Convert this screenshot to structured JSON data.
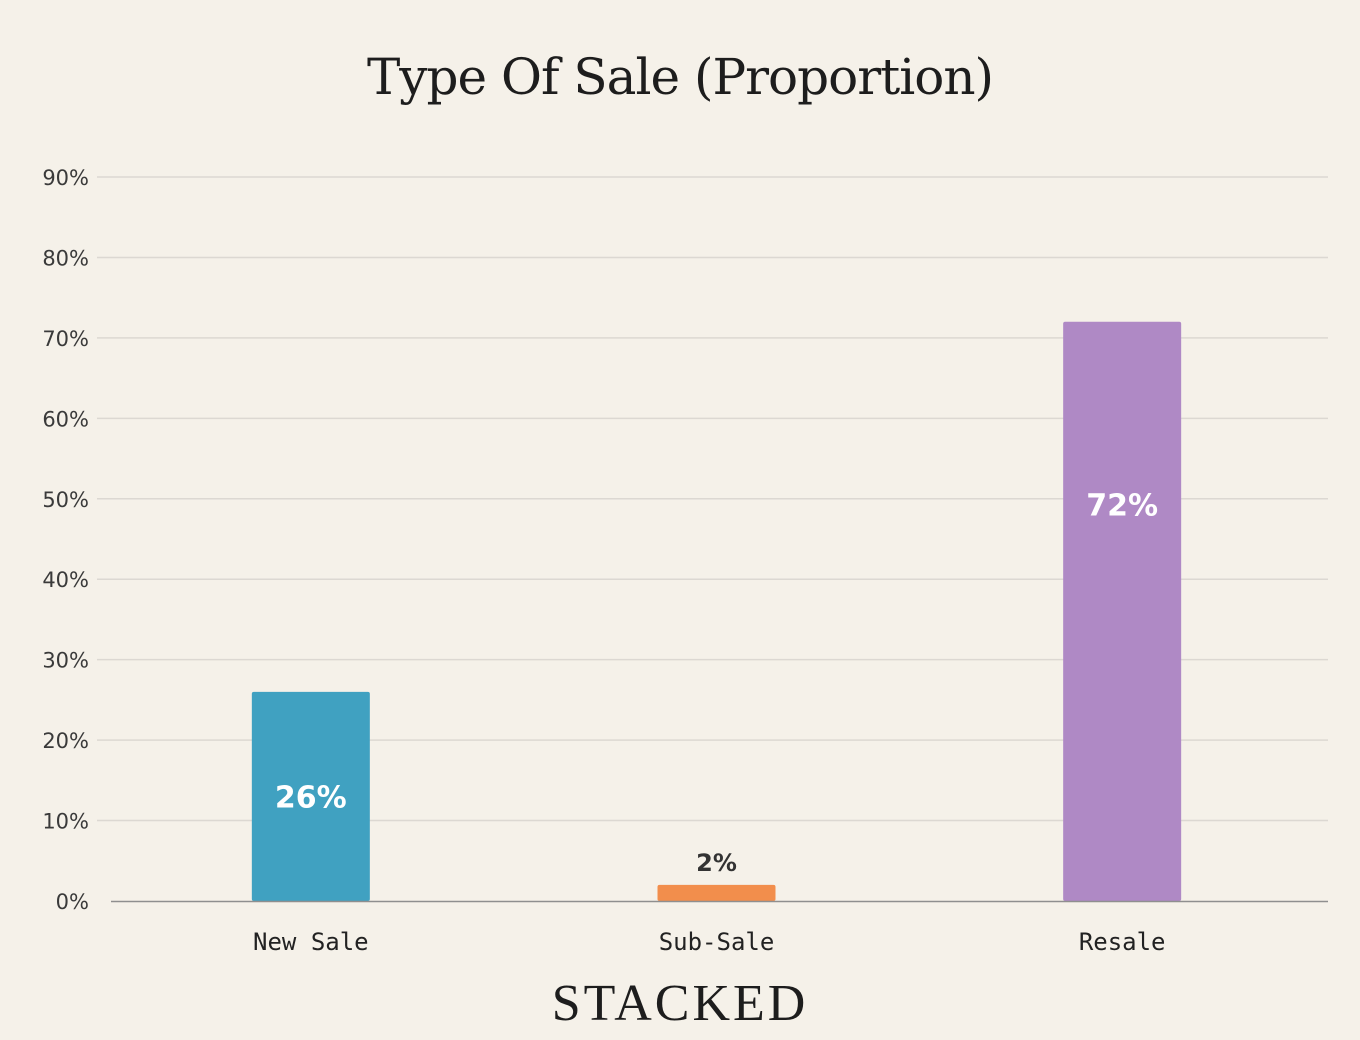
{
  "chart_data": {
    "type": "bar",
    "title": "Type Of Sale (Proportion)",
    "xlabel": "",
    "ylabel": "",
    "categories": [
      "New Sale",
      "Sub-Sale",
      "Resale"
    ],
    "values": [
      26,
      2,
      72
    ],
    "data_labels": [
      "26%",
      "2%",
      "72%"
    ],
    "colors": [
      "#40a1c1",
      "#f28e4c",
      "#af89c5"
    ],
    "ylim": [
      0,
      90
    ],
    "yticks": [
      0,
      10,
      20,
      30,
      40,
      50,
      60,
      70,
      80,
      90
    ],
    "ytick_labels": [
      "0%",
      "10%",
      "20%",
      "30%",
      "40%",
      "50%",
      "60%",
      "70%",
      "80%",
      "90%"
    ],
    "grid": true,
    "legend": "none"
  },
  "brand": {
    "logo_text": "STACKED"
  }
}
